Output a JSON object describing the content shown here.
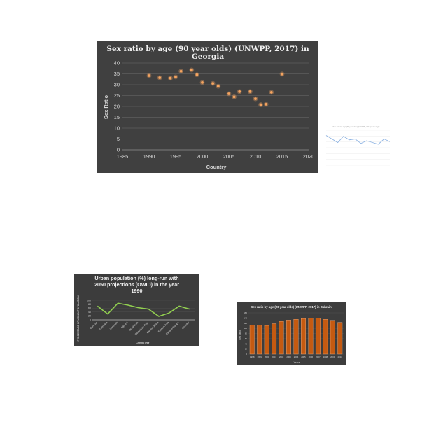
{
  "chart_data": [
    {
      "type": "scatter",
      "title": "Sex ratio by age (90 year olds) (UNWPP, 2017) in Georgia",
      "title_lines": [
        "Sex ratio by age (90 year olds) (UNWPP, 2017) in",
        "Georgia"
      ],
      "xlabel": "Country",
      "ylabel": "Sex Ratio",
      "xlim": [
        1985,
        2020
      ],
      "ylim": [
        0,
        40
      ],
      "xticks": [
        "1985",
        "1990",
        "1995",
        "2000",
        "2005",
        "2010",
        "2015",
        "2020"
      ],
      "yticks": [
        "0",
        "5",
        "10",
        "15",
        "20",
        "25",
        "30",
        "35",
        "40"
      ],
      "grid": true,
      "legend": "none",
      "marker_color": "#f4a460",
      "background": "#404040",
      "series": [
        {
          "points": [
            {
              "x": 1990,
              "y": 34.2
            },
            {
              "x": 1992,
              "y": 33.2
            },
            {
              "x": 1994,
              "y": 33.0
            },
            {
              "x": 1995,
              "y": 33.6
            },
            {
              "x": 1996,
              "y": 36.2
            },
            {
              "x": 1998,
              "y": 36.8
            },
            {
              "x": 1999,
              "y": 34.6
            },
            {
              "x": 2000,
              "y": 31.0
            },
            {
              "x": 2002,
              "y": 30.6
            },
            {
              "x": 2003,
              "y": 29.3
            },
            {
              "x": 2005,
              "y": 25.8
            },
            {
              "x": 2006,
              "y": 24.4
            },
            {
              "x": 2007,
              "y": 26.8
            },
            {
              "x": 2009,
              "y": 26.8
            },
            {
              "x": 2010,
              "y": 23.5
            },
            {
              "x": 2011,
              "y": 20.8
            },
            {
              "x": 2012,
              "y": 21.0
            },
            {
              "x": 2013,
              "y": 26.5
            },
            {
              "x": 2015,
              "y": 34.9
            }
          ]
        }
      ]
    },
    {
      "type": "line",
      "title": "Sex ratio by age (90 year olds) (UNWPP, 2017) in Georgia",
      "line_color": "#8fb4e3",
      "background": "#ffffff",
      "ylim": [
        0,
        40
      ],
      "series": [
        {
          "values": [
            34,
            30,
            26,
            33,
            29,
            30,
            25,
            28,
            26,
            24,
            30,
            27
          ]
        }
      ]
    },
    {
      "type": "line",
      "title": "Urban population (%) long-run with 2050 projections (OWID) in the year 1990",
      "title_lines": [
        "Urban population (%) long-run with",
        "2050 projections (OWID) in the year",
        "1990"
      ],
      "xlabel": "COUNTRY",
      "ylabel": "PERCENTAGE OF URBAN POPULATION",
      "ylim": [
        0,
        100
      ],
      "yticks": [
        "0",
        "20",
        "40",
        "60",
        "80",
        "100"
      ],
      "categories": [
        "Curacao",
        "Dominica",
        "Denmark",
        "Djibouti",
        "Dominican",
        "Dominican Rep.",
        "Eastern Africa",
        "Eastern Asia",
        "Eastern Europe",
        "Ecuador"
      ],
      "line_color": "#92d050",
      "background": "#3c3c3c",
      "series": [
        {
          "values": [
            70,
            30,
            85,
            75,
            62,
            55,
            18,
            35,
            70,
            55
          ]
        }
      ]
    },
    {
      "type": "bar",
      "title": "Sex ratio by age (20 year olds) (UNWPP, 2017) in Bahrain",
      "xlabel": "Years",
      "ylabel": "Sex ratio",
      "ylim": [
        0,
        160
      ],
      "yticks": [
        "0",
        "20",
        "40",
        "60",
        "80",
        "100",
        "120",
        "140",
        "160"
      ],
      "categories": [
        "1998",
        "1999",
        "2000",
        "2001",
        "2002",
        "2003",
        "2004",
        "2005",
        "2006",
        "2007",
        "2008",
        "2009",
        "2010"
      ],
      "bar_color": "#c55a11",
      "background": "#3d3d3d",
      "series": [
        {
          "values": [
            113,
            112,
            111,
            118,
            127,
            132,
            135,
            138,
            140,
            139,
            135,
            131,
            123
          ]
        }
      ]
    }
  ]
}
